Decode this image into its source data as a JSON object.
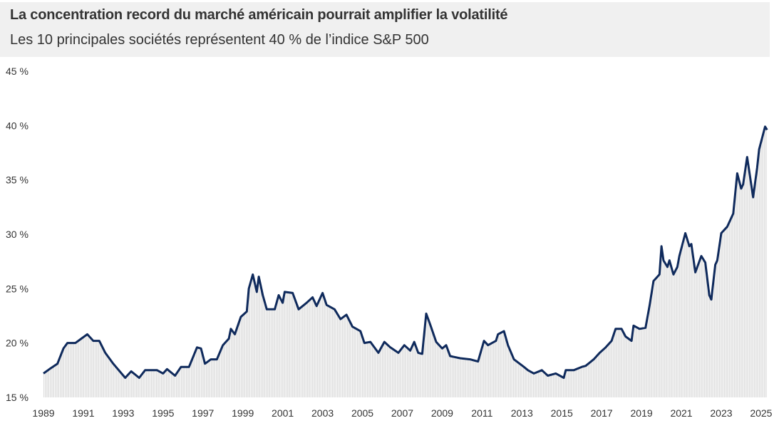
{
  "chart_data": {
    "type": "area",
    "title": "La concentration record du marché américain pourrait amplifier la volatilité",
    "subtitle": "Les 10 principales sociétés représentent 40 % de l’indice S&P 500",
    "xlabel": "",
    "ylabel": "",
    "xlim": [
      1989,
      2025.3
    ],
    "ylim": [
      15,
      45
    ],
    "y_ticks": [
      "15 %",
      "20 %",
      "25 %",
      "30 %",
      "35 %",
      "40 %",
      "45 %"
    ],
    "x_ticks": [
      "1989",
      "1991",
      "1993",
      "1995",
      "1997",
      "1999",
      "2001",
      "2003",
      "2005",
      "2007",
      "2009",
      "2011",
      "2013",
      "2015",
      "2017",
      "2019",
      "2021",
      "2023",
      "2025"
    ],
    "grid": false,
    "colors": {
      "line": "#0f2a5c",
      "fill": "#e3e3e3",
      "header_bg": "#f0f0f0"
    },
    "series": [
      {
        "x": [
          1989.0,
          1989.3,
          1989.7,
          1990.0,
          1990.2,
          1990.6,
          1990.9,
          1991.2,
          1991.5,
          1991.8,
          1992.1,
          1992.5,
          1993.1,
          1993.4,
          1993.8,
          1994.1,
          1994.7,
          1995.0,
          1995.2,
          1995.6,
          1995.9,
          1996.3,
          1996.7,
          1996.9,
          1997.1,
          1997.4,
          1997.7,
          1998.0,
          1998.3,
          1998.4,
          1998.6,
          1998.9,
          1999.2,
          1999.3,
          1999.5,
          1999.7,
          1999.8,
          2000.0,
          2000.2,
          2000.6,
          2000.8,
          2001.0,
          2001.1,
          2001.5,
          2001.8,
          2002.2,
          2002.5,
          2002.7,
          2003.0,
          2003.2,
          2003.6,
          2003.9,
          2004.2,
          2004.5,
          2004.9,
          2005.1,
          2005.4,
          2005.8,
          2006.1,
          2006.4,
          2006.8,
          2007.1,
          2007.4,
          2007.6,
          2007.8,
          2008.0,
          2008.2,
          2008.4,
          2008.7,
          2009.0,
          2009.2,
          2009.4,
          2009.9,
          2010.4,
          2010.8,
          2011.1,
          2011.3,
          2011.7,
          2011.8,
          2012.1,
          2012.3,
          2012.6,
          2013.1,
          2013.3,
          2013.6,
          2014.0,
          2014.3,
          2014.7,
          2015.1,
          2015.2,
          2015.6,
          2016.0,
          2016.2,
          2016.6,
          2016.9,
          2017.2,
          2017.5,
          2017.7,
          2018.0,
          2018.2,
          2018.5,
          2018.6,
          2018.9,
          2019.2,
          2019.4,
          2019.6,
          2019.9,
          2020.0,
          2020.1,
          2020.3,
          2020.4,
          2020.6,
          2020.8,
          2020.9,
          2021.2,
          2021.4,
          2021.5,
          2021.7,
          2022.0,
          2022.2,
          2022.4,
          2022.5,
          2022.7,
          2022.8,
          2023.0,
          2023.2,
          2023.3,
          2023.6,
          2023.8,
          2024.0,
          2024.1,
          2024.3,
          2024.6,
          2024.8,
          2024.9,
          2025.2,
          2025.3
        ],
        "y": [
          17.2,
          17.6,
          18.1,
          19.5,
          20.0,
          20.0,
          20.4,
          20.8,
          20.2,
          20.2,
          19.1,
          18.1,
          16.8,
          17.4,
          16.8,
          17.5,
          17.5,
          17.2,
          17.6,
          17.0,
          17.8,
          17.8,
          19.6,
          19.5,
          18.1,
          18.5,
          18.5,
          19.8,
          20.4,
          21.3,
          20.8,
          22.4,
          22.9,
          25.0,
          26.3,
          24.7,
          26.1,
          24.4,
          23.1,
          23.1,
          24.4,
          23.7,
          24.7,
          24.6,
          23.1,
          23.7,
          24.2,
          23.4,
          24.6,
          23.5,
          23.1,
          22.2,
          22.6,
          21.5,
          21.1,
          20.0,
          20.1,
          19.1,
          20.1,
          19.6,
          19.1,
          19.8,
          19.3,
          20.1,
          19.1,
          19.0,
          22.7,
          21.7,
          20.1,
          19.5,
          19.8,
          18.8,
          18.6,
          18.5,
          18.3,
          20.2,
          19.8,
          20.2,
          20.8,
          21.1,
          19.8,
          18.5,
          17.8,
          17.5,
          17.2,
          17.5,
          17.0,
          17.2,
          16.8,
          17.5,
          17.5,
          17.8,
          17.9,
          18.5,
          19.1,
          19.6,
          20.2,
          21.3,
          21.3,
          20.6,
          20.2,
          21.6,
          21.3,
          21.4,
          23.4,
          25.7,
          26.3,
          28.9,
          27.6,
          27.0,
          27.6,
          26.3,
          27.0,
          28.0,
          30.1,
          28.9,
          29.1,
          26.5,
          28.0,
          27.4,
          24.4,
          24.0,
          27.2,
          27.6,
          30.1,
          30.5,
          30.7,
          31.9,
          35.6,
          34.2,
          34.6,
          37.1,
          33.4,
          36.1,
          37.8,
          39.9,
          39.6
        ]
      }
    ]
  }
}
